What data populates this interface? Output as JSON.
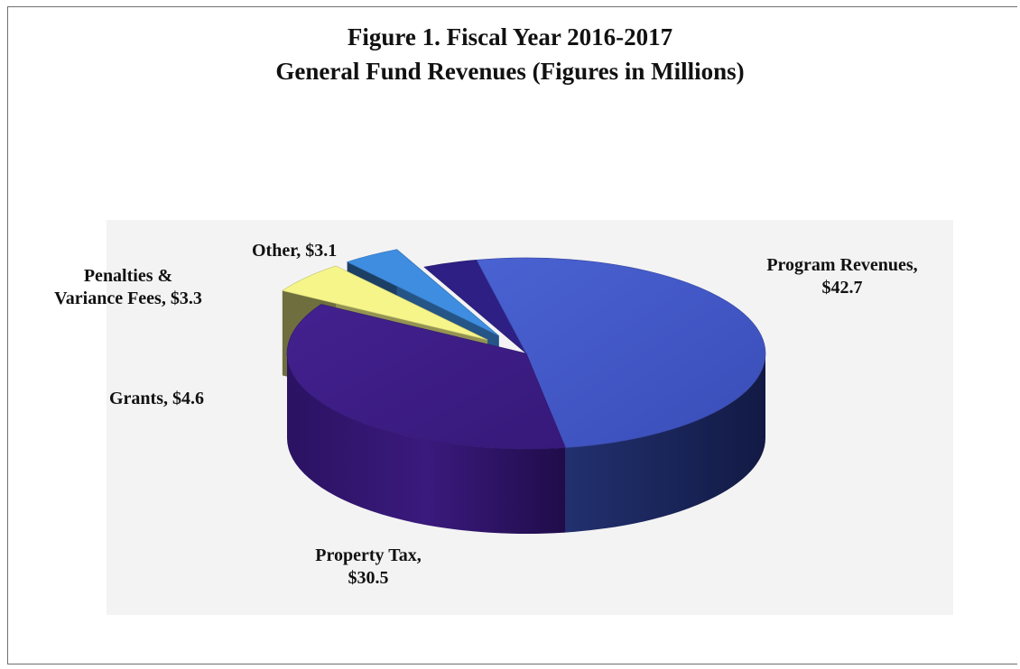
{
  "chart_data": {
    "type": "pie",
    "style": "3d-exploded",
    "title": "Figure 1. Fiscal Year 2016-2017",
    "subtitle": "General Fund Revenues (Figures in Millions)",
    "slices": [
      {
        "label_line1": "Program Revenues,",
        "label_line2": "$42.7",
        "value": 42.7,
        "color": "#4457c8",
        "exploded": false
      },
      {
        "label_line1": "Property Tax,",
        "label_line2": "$30.5",
        "value": 30.5,
        "color": "#3d1f8a",
        "exploded": false
      },
      {
        "label_line1": "Grants, $4.6",
        "label_line2": "",
        "value": 4.6,
        "color": "#f6f58a",
        "exploded": true
      },
      {
        "label_line1": "Penalties &",
        "label_line2": "Variance Fees, $3.3",
        "value": 3.3,
        "color": "#3e8de0",
        "exploded": true
      },
      {
        "label_line1": "Other, $3.1",
        "label_line2": "",
        "value": 3.1,
        "color": "#2e1f84",
        "exploded": false
      }
    ],
    "legend": "none",
    "grid": false
  }
}
